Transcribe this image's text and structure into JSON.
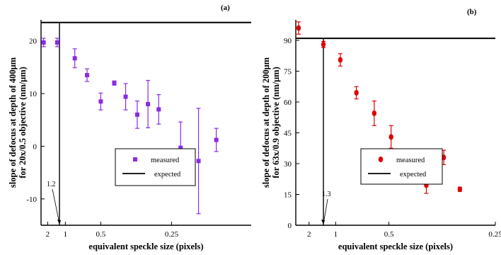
{
  "chart_data": [
    {
      "type": "scatter",
      "panel_label": "(a)",
      "xlabel": "equivalent speckle size (pixels)",
      "ylabel_lines": [
        "slope of defocus at depth of 400μm",
        "for 20x/0.5 objective (nm/μm)"
      ],
      "x_scale": "reciprocal",
      "xlim": [
        3.2,
        0.16
      ],
      "ylim": [
        -15,
        24
      ],
      "x_ticks": [
        2,
        1,
        0.5,
        0.25
      ],
      "x_tick_labels": [
        "2",
        "1",
        "0.5",
        "0.25"
      ],
      "y_ticks": [
        -10,
        0,
        10,
        20
      ],
      "y_tick_labels": [
        "-10",
        "0",
        "10",
        "20"
      ],
      "series": [
        {
          "name": "measured",
          "marker": "square",
          "color": "#8a2be2",
          "points": [
            {
              "x": 2.6,
              "y": 19.7,
              "err": 0.8
            },
            {
              "x": 1.3,
              "y": 19.7,
              "err": 0.8
            },
            {
              "x": 0.79,
              "y": 16.7,
              "err": 1.8
            },
            {
              "x": 0.62,
              "y": 13.5,
              "err": 1.2
            },
            {
              "x": 0.5,
              "y": 8.5,
              "err": 1.6
            },
            {
              "x": 0.42,
              "y": 12.0,
              "err": 0.4
            },
            {
              "x": 0.37,
              "y": 9.4,
              "err": 2.5
            },
            {
              "x": 0.33,
              "y": 6.0,
              "err": 2.6
            },
            {
              "x": 0.3,
              "y": 8.0,
              "err": 4.5
            },
            {
              "x": 0.275,
              "y": 7.0,
              "err": 2.8
            },
            {
              "x": 0.235,
              "y": -0.3,
              "err": 4.9
            },
            {
              "x": 0.21,
              "y": -2.8,
              "err": 10.0
            },
            {
              "x": 0.19,
              "y": 1.2,
              "err": 2.2
            }
          ]
        },
        {
          "name": "expected",
          "type": "line",
          "color": "#000000",
          "y": 23.5
        }
      ],
      "vline": {
        "x": 1.2,
        "label": "1.2"
      },
      "legend": {
        "position": "center",
        "entries": [
          "measured",
          "expected"
        ]
      }
    },
    {
      "type": "scatter",
      "panel_label": "(b)",
      "xlabel": "equivalent speckle size (pixels)",
      "ylabel_lines": [
        "slope of defocus at depth of 200μm",
        "for 63x/0.9 objective (nm/μm)"
      ],
      "x_scale": "reciprocal",
      "xlim": [
        4.0,
        0.25
      ],
      "ylim": [
        0,
        100
      ],
      "x_ticks": [
        2,
        1,
        0.5,
        0.25
      ],
      "x_tick_labels": [
        "2",
        "1",
        "0.5",
        "0.25"
      ],
      "y_ticks": [
        0,
        15,
        30,
        45,
        60,
        75,
        90
      ],
      "y_tick_labels": [
        "0",
        "15",
        "30",
        "45",
        "60",
        "75",
        "90"
      ],
      "series": [
        {
          "name": "measured",
          "marker": "circle",
          "color": "#e00000",
          "points": [
            {
              "x": 3.3,
              "y": 96.0,
              "err": 3.0
            },
            {
              "x": 1.3,
              "y": 88.0,
              "err": 1.5
            },
            {
              "x": 0.92,
              "y": 80.5,
              "err": 3.0
            },
            {
              "x": 0.72,
              "y": 64.5,
              "err": 3.0
            },
            {
              "x": 0.58,
              "y": 54.5,
              "err": 6.0
            },
            {
              "x": 0.49,
              "y": 43.0,
              "err": 5.5
            },
            {
              "x": 0.42,
              "y": 32.5,
              "err": 4.0
            },
            {
              "x": 0.37,
              "y": 19.5,
              "err": 4.0
            },
            {
              "x": 0.33,
              "y": 33.0,
              "err": 3.5
            },
            {
              "x": 0.3,
              "y": 17.5,
              "err": 1.0
            }
          ]
        },
        {
          "name": "expected",
          "type": "line",
          "color": "#000000",
          "y": 91.0
        }
      ],
      "vline": {
        "x": 1.3,
        "label": "1.3"
      },
      "legend": {
        "position": "center",
        "entries": [
          "measured",
          "expected"
        ]
      }
    }
  ]
}
